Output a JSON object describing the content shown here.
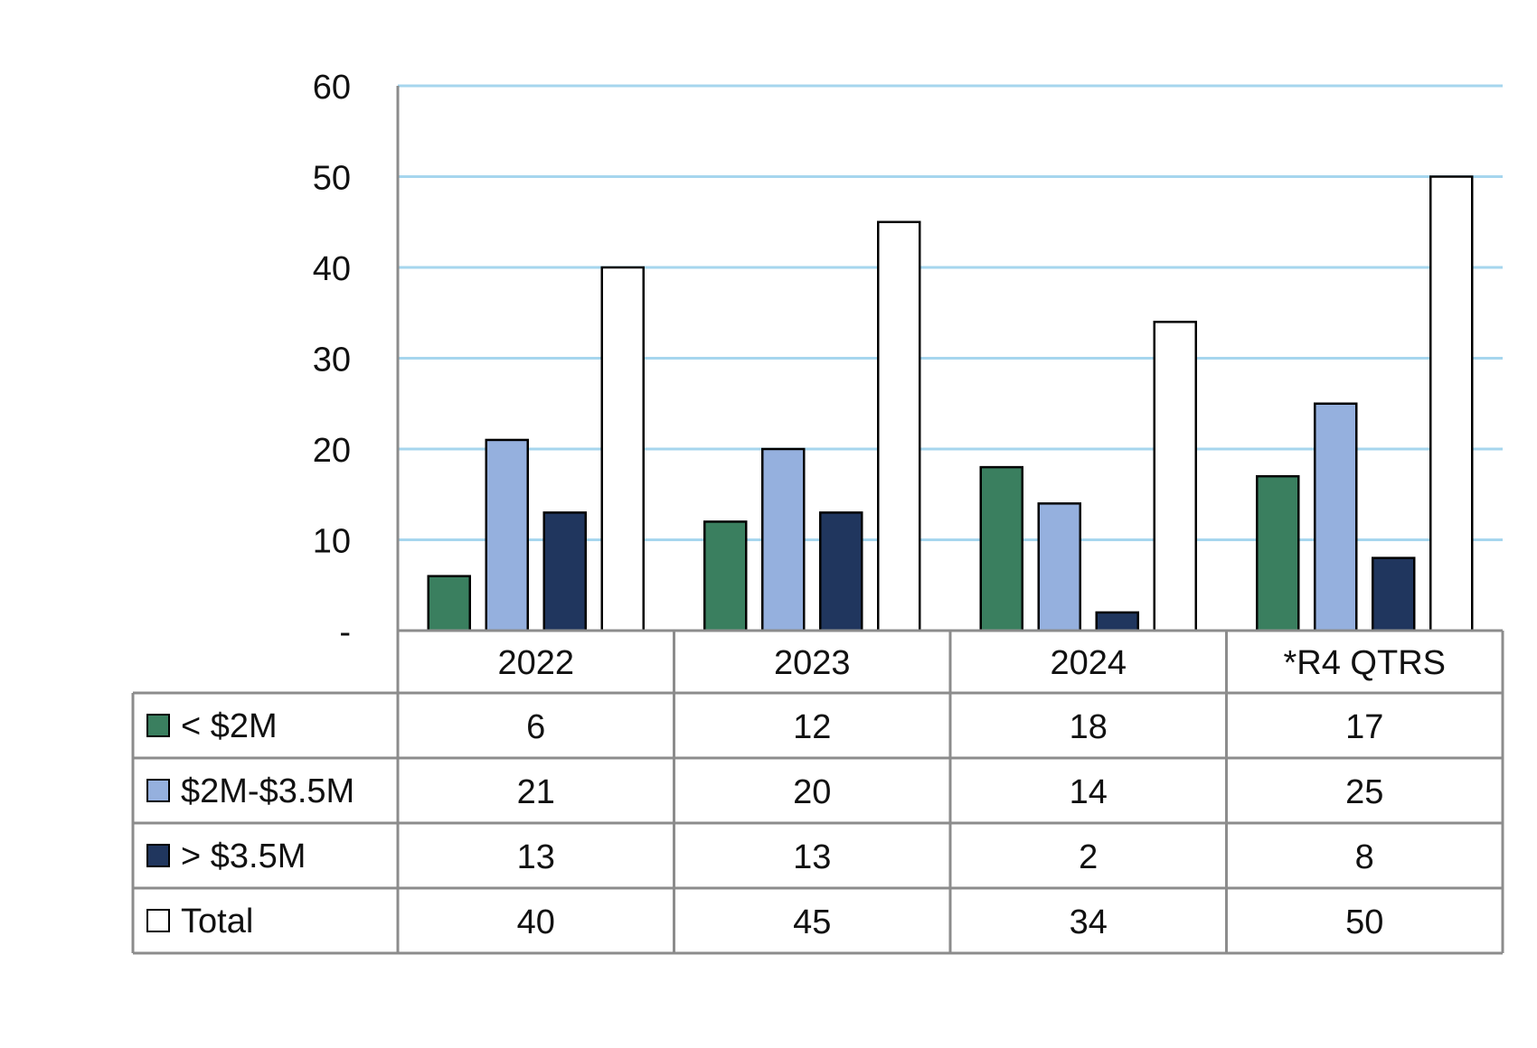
{
  "chart_data": {
    "type": "bar",
    "title": "",
    "xlabel": "",
    "ylabel": "",
    "ylim": [
      0,
      60
    ],
    "y_ticks": [
      {
        "value": 0,
        "label": "-"
      },
      {
        "value": 10,
        "label": "10"
      },
      {
        "value": 20,
        "label": "20"
      },
      {
        "value": 30,
        "label": "30"
      },
      {
        "value": 40,
        "label": "40"
      },
      {
        "value": 50,
        "label": "50"
      },
      {
        "value": 60,
        "label": "60"
      }
    ],
    "grid": true,
    "legend": "data-table",
    "categories": [
      "2022",
      "2023",
      "2024",
      "*R4 QTRS"
    ],
    "series": [
      {
        "name": "< $2M",
        "values": [
          6,
          12,
          18,
          17
        ],
        "color": "#3a7f5f"
      },
      {
        "name": "$2M-$3.5M",
        "values": [
          21,
          20,
          14,
          25
        ],
        "color": "#95b0de"
      },
      {
        "name": "> $3.5M",
        "values": [
          13,
          13,
          2,
          8
        ],
        "color": "#20365e"
      },
      {
        "name": "Total",
        "values": [
          40,
          45,
          34,
          50
        ],
        "color": "#ffffff"
      }
    ],
    "data_table": {
      "column_headers": [
        "2022",
        "2023",
        "2024",
        "*R4 QTRS"
      ],
      "rows": [
        {
          "label": "< $2M",
          "cells": [
            "6",
            "12",
            "18",
            "17"
          ]
        },
        {
          "label": "$2M-$3.5M",
          "cells": [
            "21",
            "20",
            "14",
            "25"
          ]
        },
        {
          "label": "> $3.5M",
          "cells": [
            "13",
            "13",
            "2",
            "8"
          ]
        },
        {
          "label": "Total",
          "cells": [
            "40",
            "45",
            "34",
            "50"
          ]
        }
      ]
    }
  },
  "colors": {
    "gridline": "#a6d6ee",
    "axis": "#8c8c8c",
    "table_border": "#8c8c8c",
    "bar_outline": "#000000",
    "text": "#111111"
  }
}
